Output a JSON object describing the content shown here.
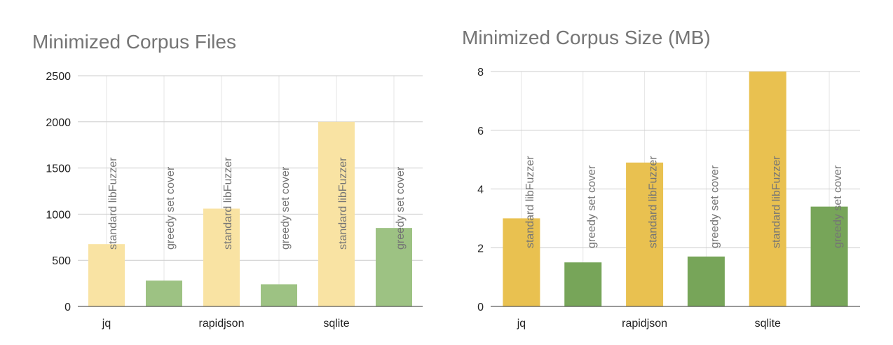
{
  "chart_data": [
    {
      "type": "bar",
      "title": "Minimized Corpus Files",
      "categories": [
        "jq",
        "rapidjson",
        "sqlite"
      ],
      "bars": [
        {
          "category": "jq",
          "label": "standard libFuzzer",
          "value": 675,
          "color": "#f9e3a3"
        },
        {
          "category": "jq",
          "label": "greedy set cover",
          "value": 280,
          "color": "#9dc283"
        },
        {
          "category": "rapidjson",
          "label": "standard libFuzzer",
          "value": 1060,
          "color": "#f9e3a3"
        },
        {
          "category": "rapidjson",
          "label": "greedy set cover",
          "value": 240,
          "color": "#9dc283"
        },
        {
          "category": "sqlite",
          "label": "standard libFuzzer",
          "value": 2000,
          "color": "#f9e3a3"
        },
        {
          "category": "sqlite",
          "label": "greedy set cover",
          "value": 850,
          "color": "#9dc283"
        }
      ],
      "yticks": [
        "0",
        "500",
        "1000",
        "1500",
        "2000",
        "2500"
      ],
      "ylim": [
        0,
        2500
      ],
      "grid": true
    },
    {
      "type": "bar",
      "title": "Minimized Corpus Size (MB)",
      "categories": [
        "jq",
        "rapidjson",
        "sqlite"
      ],
      "bars": [
        {
          "category": "jq",
          "label": "standard libFuzzer",
          "value": 3.0,
          "color": "#e9c150"
        },
        {
          "category": "jq",
          "label": "greedy set cover",
          "value": 1.5,
          "color": "#77a559"
        },
        {
          "category": "rapidjson",
          "label": "standard libFuzzer",
          "value": 4.9,
          "color": "#e9c150"
        },
        {
          "category": "rapidjson",
          "label": "greedy set cover",
          "value": 1.7,
          "color": "#77a559"
        },
        {
          "category": "sqlite",
          "label": "standard libFuzzer",
          "value": 8.0,
          "color": "#e9c150"
        },
        {
          "category": "sqlite",
          "label": "greedy set cover",
          "value": 3.4,
          "color": "#77a559"
        }
      ],
      "yticks": [
        "0",
        "2",
        "4",
        "6",
        "8"
      ],
      "ylim": [
        0,
        8
      ],
      "grid": true
    }
  ]
}
